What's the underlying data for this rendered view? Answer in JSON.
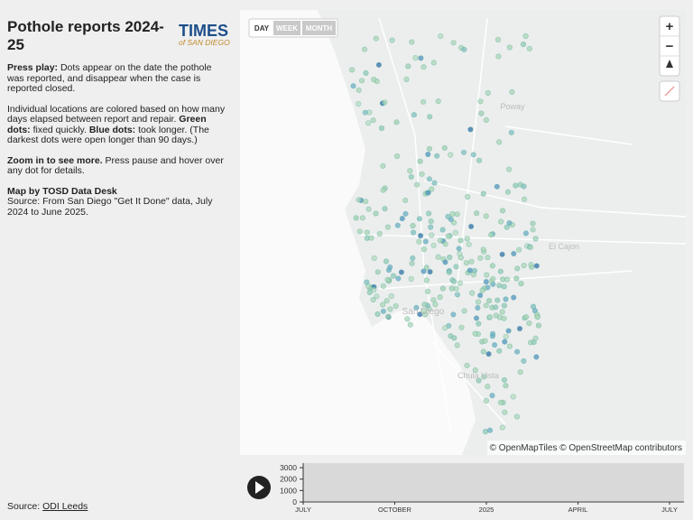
{
  "header": {
    "title": "Pothole reports 2024-25",
    "logo_top": "TIMES",
    "logo_bottom": "of SAN DIEGO"
  },
  "intro": {
    "p1": [
      "Press play:",
      " Dots appear on the date the pothole was reported, and disappear when the case is reported closed."
    ],
    "p2": [
      "Individual locations are colored based on how many days elapsed between report and repair. ",
      "Green dots:",
      " fixed quickly. ",
      "Blue dots:",
      " took longer. (The darkest dots were open longer than 90 days.)"
    ],
    "p3": [
      "Zoom in to see more.",
      " Press pause and hover over any dot for details."
    ],
    "p4": [
      "Map by TOSD Data Desk",
      "Source: From San Diego \"Get It Done\" data, July 2024 to June 2025."
    ]
  },
  "footer": {
    "label": "Source: ",
    "link": "ODI Leeds"
  },
  "map": {
    "buttons": [
      "DAY",
      "WEEK",
      "MONTH"
    ],
    "zoom_in": "+",
    "zoom_out": "−",
    "places": [
      "Poway",
      "El Cajon",
      "San Diego",
      "Chula Vista"
    ],
    "attribution": "© OpenMapTiles © OpenStreetMap contributors"
  },
  "timeline": {
    "ylim": [
      0,
      3400
    ],
    "yticks": [
      0,
      1000,
      2000,
      3000
    ],
    "xticks": [
      "JULY",
      "OCTOBER",
      "2025",
      "APRIL",
      "JULY"
    ]
  }
}
